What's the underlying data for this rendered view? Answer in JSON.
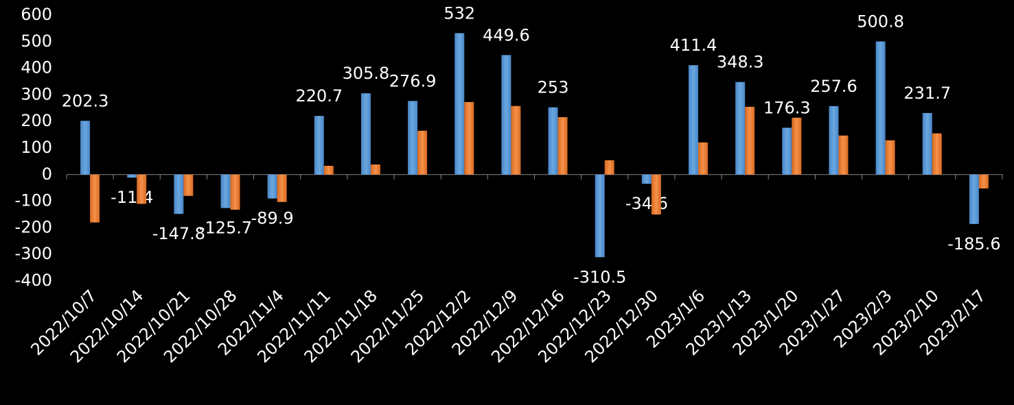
{
  "chart_data": {
    "type": "bar",
    "categories": [
      "2022/10/7",
      "2022/10/14",
      "2022/10/21",
      "2022/10/28",
      "2022/11/4",
      "2022/11/11",
      "2022/11/18",
      "2022/11/25",
      "2022/12/2",
      "2022/12/9",
      "2022/12/16",
      "2022/12/23",
      "2022/12/30",
      "2023/1/6",
      "2023/1/13",
      "2023/1/20",
      "2023/1/27",
      "2023/2/3",
      "2023/2/10",
      "2023/2/17"
    ],
    "series": [
      {
        "color": "#5b9bd5",
        "values": [
          202.3,
          -11.4,
          -147.8,
          -125.7,
          -89.9,
          220.7,
          305.8,
          276.9,
          532,
          449.6,
          253,
          -310.5,
          -34.6,
          411.4,
          348.3,
          176.3,
          257.6,
          500.8,
          231.7,
          -185.6
        ],
        "data_labels": true
      },
      {
        "color": "#ed7d31",
        "values": [
          -180,
          -110,
          -80,
          -132,
          -103,
          33,
          38,
          165,
          273,
          258,
          216,
          54,
          -150,
          121,
          255,
          214,
          147,
          129,
          155,
          -52
        ],
        "data_labels": false
      }
    ],
    "ylim": [
      -400,
      600
    ],
    "yticks": [
      -400,
      -300,
      -200,
      -100,
      0,
      100,
      200,
      300,
      400,
      500,
      600
    ],
    "grid": false
  }
}
